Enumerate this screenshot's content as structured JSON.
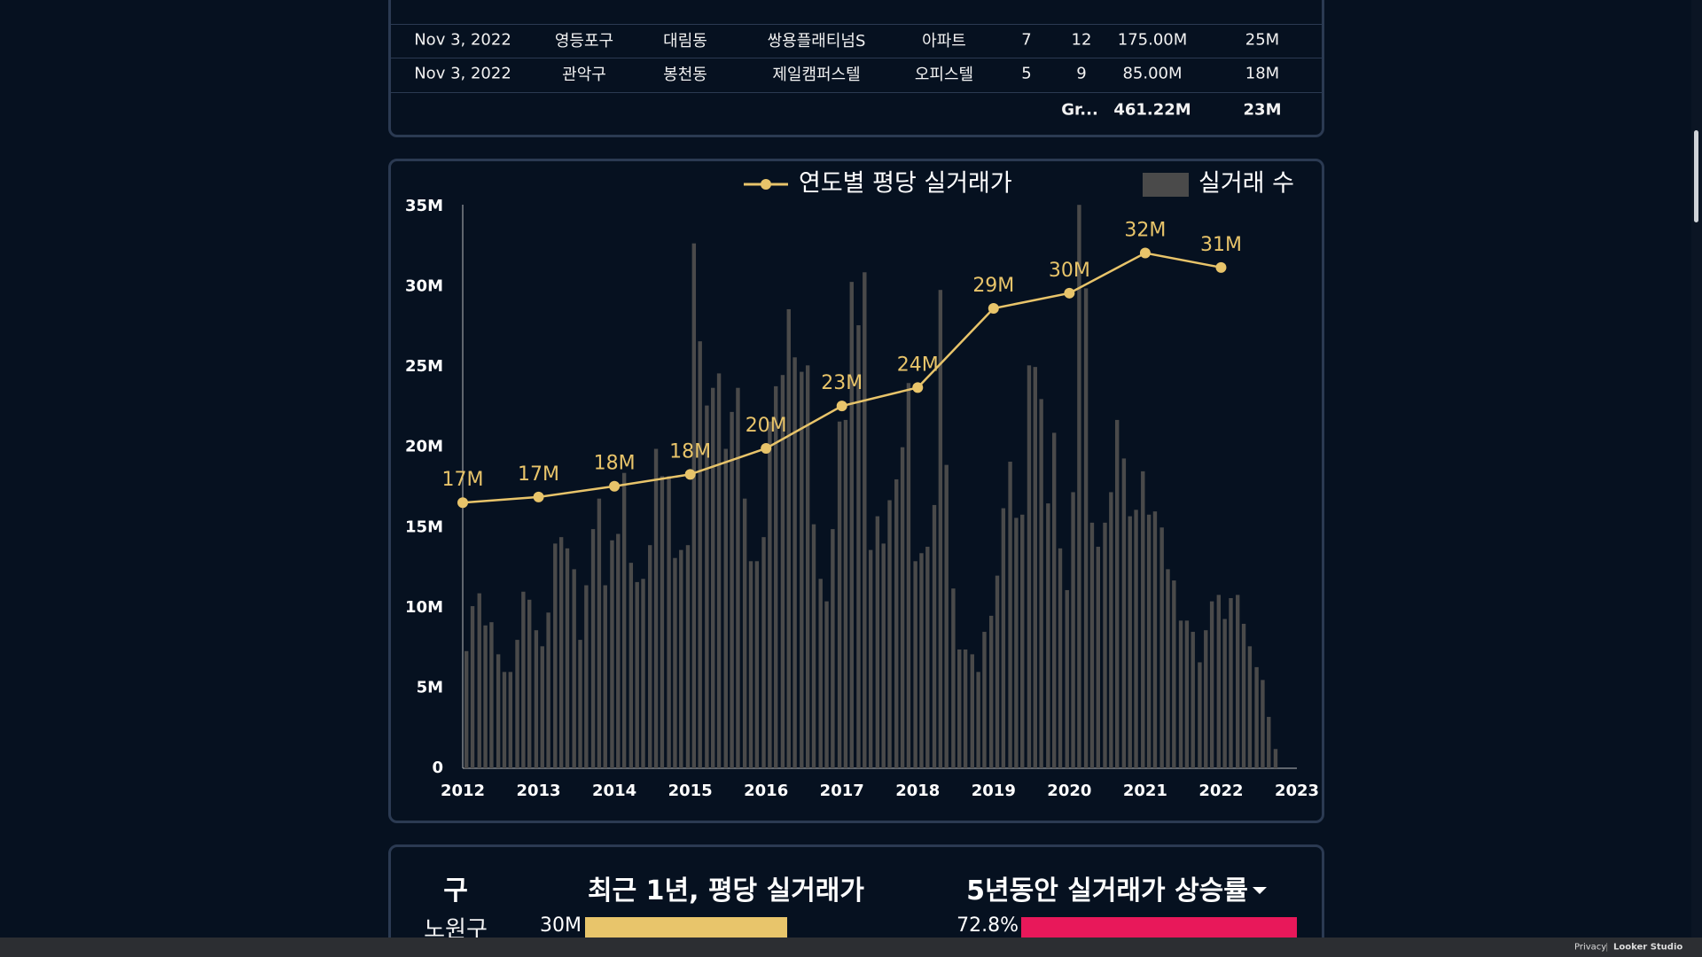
{
  "table": {
    "rows": [
      [
        "Nov 3, 2022",
        "영등포구",
        "대림동",
        "쌍용플래티넘S",
        "아파트",
        "7",
        "12",
        "175.00M",
        "25M"
      ],
      [
        "Nov 3, 2022",
        "관악구",
        "봉천동",
        "제일캠퍼스텔",
        "오피스텔",
        "5",
        "9",
        "85.00M",
        "18M"
      ]
    ],
    "total": [
      "Gr...",
      "461.22M",
      "23M"
    ]
  },
  "chart_data": {
    "type": "combo",
    "xlim": [
      2012,
      2023
    ],
    "xticks": [
      2012,
      2013,
      2014,
      2015,
      2016,
      2017,
      2018,
      2019,
      2020,
      2021,
      2022,
      2023
    ],
    "ylim": [
      0,
      35
    ],
    "yticks": [
      0,
      {
        "value": 5,
        "label": "5M"
      },
      {
        "value": 10,
        "label": "10M"
      },
      {
        "value": 15,
        "label": "15M"
      },
      {
        "value": 20,
        "label": "20M"
      },
      {
        "value": 25,
        "label": "25M"
      },
      {
        "value": 30,
        "label": "30M"
      },
      {
        "value": 35,
        "label": "35M"
      }
    ],
    "grid": false,
    "legend": "top-right",
    "series": [
      {
        "name": "연도별 평당 실거래가",
        "type": "line",
        "color": "#e8c46a",
        "x": [
          2012,
          2013,
          2014,
          2015,
          2016,
          2017,
          2018,
          2019,
          2020,
          2021,
          2022
        ],
        "values": [
          16.55,
          16.9,
          17.57,
          18.31,
          19.93,
          22.57,
          23.72,
          28.65,
          29.6,
          32.1,
          31.2
        ],
        "value_labels": [
          "17M",
          "17M",
          "18M",
          "18M",
          "20M",
          "23M",
          "24M",
          "29M",
          "30M",
          "32M",
          "31M"
        ]
      },
      {
        "name": "실거래 수",
        "type": "bar",
        "color": "#4a4a4a",
        "x": [
          2012,
          2012.08,
          2012.17,
          2012.25,
          2012.33,
          2012.42,
          2012.5,
          2012.58,
          2012.67,
          2012.75,
          2012.83,
          2012.92,
          2013,
          2013.08,
          2013.17,
          2013.25,
          2013.33,
          2013.42,
          2013.5,
          2013.58,
          2013.67,
          2013.75,
          2013.83,
          2013.92,
          2014,
          2014.08,
          2014.17,
          2014.25,
          2014.33,
          2014.42,
          2014.5,
          2014.58,
          2014.67,
          2014.75,
          2014.83,
          2014.92,
          2015,
          2015.08,
          2015.17,
          2015.25,
          2015.33,
          2015.42,
          2015.5,
          2015.58,
          2015.67,
          2015.75,
          2015.83,
          2015.92,
          2016,
          2016.08,
          2016.17,
          2016.25,
          2016.33,
          2016.42,
          2016.5,
          2016.58,
          2016.67,
          2016.75,
          2016.83,
          2016.92,
          2017,
          2017.08,
          2017.17,
          2017.25,
          2017.33,
          2017.42,
          2017.5,
          2017.58,
          2017.67,
          2017.75,
          2017.83,
          2017.92,
          2018,
          2018.08,
          2018.17,
          2018.25,
          2018.33,
          2018.42,
          2018.5,
          2018.58,
          2018.67,
          2018.75,
          2018.83,
          2018.92,
          2019,
          2019.08,
          2019.17,
          2019.25,
          2019.33,
          2019.42,
          2019.5,
          2019.58,
          2019.67,
          2019.75,
          2019.83,
          2019.92,
          2020,
          2020.08,
          2020.17,
          2020.25,
          2020.33,
          2020.42,
          2020.5,
          2020.58,
          2020.67,
          2020.75,
          2020.83,
          2020.92,
          2021,
          2021.08,
          2021.17,
          2021.25,
          2021.33,
          2021.42,
          2021.5,
          2021.58,
          2021.67,
          2021.75,
          2021.83,
          2021.92,
          2022,
          2022.08,
          2022.17,
          2022.25,
          2022.33,
          2022.42,
          2022.5,
          2022.58,
          2022.67
        ],
        "values": [
          7.3,
          10.1,
          10.9,
          8.9,
          9.1,
          7.1,
          6.0,
          6.0,
          8.0,
          11.0,
          10.5,
          8.6,
          7.6,
          9.7,
          14.0,
          14.4,
          13.7,
          12.4,
          8.0,
          11.4,
          14.9,
          16.8,
          11.4,
          14.2,
          14.6,
          18.4,
          12.8,
          11.6,
          11.8,
          13.9,
          19.9,
          18.2,
          18.2,
          13.1,
          13.6,
          13.9,
          32.7,
          26.6,
          22.6,
          23.7,
          24.6,
          19.9,
          22.2,
          23.7,
          16.8,
          12.9,
          12.9,
          14.4,
          21.6,
          23.8,
          24.5,
          28.6,
          25.6,
          24.7,
          25.1,
          15.2,
          11.8,
          10.4,
          14.9,
          21.6,
          21.7,
          30.3,
          27.6,
          30.9,
          13.6,
          15.7,
          14.0,
          16.7,
          18.0,
          20.0,
          24.0,
          12.9,
          13.4,
          13.8,
          16.4,
          29.8,
          18.9,
          11.2,
          7.4,
          7.4,
          7.1,
          6.0,
          8.5,
          9.5,
          12.0,
          16.2,
          19.1,
          15.6,
          15.8,
          25.1,
          25.0,
          23.0,
          16.5,
          20.9,
          13.7,
          11.1,
          17.2,
          35.1,
          29.9,
          15.3,
          13.8,
          15.3,
          17.2,
          21.7,
          19.3,
          15.7,
          16.1,
          18.5,
          15.8,
          16.0,
          15.0,
          12.4,
          11.7,
          9.2,
          9.2,
          8.5,
          6.6,
          8.6,
          10.4,
          10.8,
          9.3,
          10.6,
          10.8,
          9.0,
          7.6,
          6.3,
          5.5,
          3.2,
          1.2
        ]
      }
    ]
  },
  "ranking": {
    "headers": [
      "구",
      "최근 1년, 평당 실거래가",
      "5년동안 실거래가 상승률"
    ],
    "price_color": "#e8c56b",
    "rate_color": "#e8185a",
    "rows": [
      {
        "name": "노원구",
        "price": 30,
        "price_label": "30M",
        "rate": 72.8,
        "rate_label": "72.8%"
      }
    ]
  },
  "footer": {
    "privacy": "Privacy",
    "brand": "Looker Studio"
  }
}
